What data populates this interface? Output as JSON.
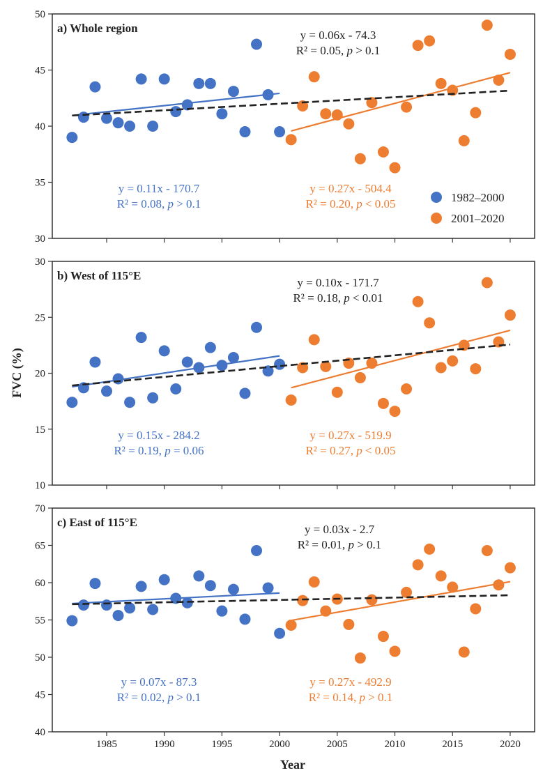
{
  "chart_data": {
    "type": "scatter",
    "xlabel": "Year",
    "ylabel": "FVC (%)",
    "xlim": [
      1981,
      2021.5
    ],
    "xticks": [
      1985,
      1990,
      1995,
      2000,
      2005,
      2010,
      2015,
      2020
    ],
    "legend": {
      "placement": "bottom-right of panel a",
      "entries": [
        "1982–2000",
        "2001–2020"
      ]
    },
    "colors": {
      "period1": "#4472C4",
      "period2": "#ED7D31",
      "overall_trend": "#222222"
    },
    "grid": false,
    "panels": [
      {
        "title": "a) Whole region",
        "ylim": [
          30,
          50
        ],
        "yticks": [
          30,
          35,
          40,
          45,
          50
        ],
        "series": [
          {
            "name": "1982–2000",
            "x": [
              1982,
              1983,
              1984,
              1985,
              1986,
              1987,
              1988,
              1989,
              1990,
              1991,
              1992,
              1993,
              1994,
              1995,
              1996,
              1997,
              1998,
              1999,
              2000
            ],
            "y": [
              39.0,
              40.8,
              43.5,
              40.7,
              40.3,
              40.0,
              44.2,
              40.0,
              44.2,
              41.3,
              41.9,
              43.8,
              43.8,
              41.1,
              43.1,
              39.5,
              47.3,
              42.8,
              39.5
            ]
          },
          {
            "name": "2001–2020",
            "x": [
              2001,
              2002,
              2003,
              2004,
              2005,
              2006,
              2007,
              2008,
              2009,
              2010,
              2011,
              2012,
              2013,
              2014,
              2015,
              2016,
              2017,
              2018,
              2019,
              2020
            ],
            "y": [
              38.8,
              41.8,
              44.4,
              41.1,
              41.0,
              40.2,
              37.1,
              42.1,
              37.7,
              36.3,
              41.7,
              47.2,
              47.6,
              43.8,
              43.2,
              38.7,
              41.2,
              49.0,
              44.1,
              46.4
            ]
          }
        ],
        "annotations": {
          "overall": [
            "y = 0.06x - 74.3",
            "R² = 0.05, ",
            "p",
            " > 0.1"
          ],
          "period1": [
            "y = 0.11x - 170.7",
            "R² = 0.08, ",
            "p",
            " > 0.1"
          ],
          "period2": [
            "y = 0.27x - 504.4",
            "R² = 0.20, ",
            "p",
            " < 0.05"
          ]
        }
      },
      {
        "title": "b) West of 115°E",
        "ylim": [
          10,
          30
        ],
        "yticks": [
          10,
          15,
          20,
          25,
          30
        ],
        "series": [
          {
            "name": "1982–2000",
            "x": [
              1982,
              1983,
              1984,
              1985,
              1986,
              1987,
              1988,
              1989,
              1990,
              1991,
              1992,
              1993,
              1994,
              1995,
              1996,
              1997,
              1998,
              1999,
              2000
            ],
            "y": [
              17.4,
              18.7,
              21.0,
              18.4,
              19.5,
              17.4,
              23.2,
              17.8,
              22.0,
              18.6,
              21.0,
              20.5,
              22.3,
              20.7,
              21.4,
              18.2,
              24.1,
              20.2,
              20.8
            ]
          },
          {
            "name": "2001–2020",
            "x": [
              2001,
              2002,
              2003,
              2004,
              2005,
              2006,
              2007,
              2008,
              2009,
              2010,
              2011,
              2012,
              2013,
              2014,
              2015,
              2016,
              2017,
              2018,
              2019,
              2020
            ],
            "y": [
              17.6,
              20.5,
              23.0,
              20.6,
              18.3,
              20.9,
              19.6,
              20.9,
              17.3,
              16.6,
              18.6,
              26.4,
              24.5,
              20.5,
              21.1,
              22.5,
              20.4,
              28.1,
              22.8,
              25.2
            ]
          }
        ],
        "annotations": {
          "overall": [
            "y = 0.10x - 171.7",
            "R² = 0.18, ",
            "p",
            " < 0.01"
          ],
          "period1": [
            "y = 0.15x - 284.2",
            "R² = 0.19, ",
            "p",
            " = 0.06"
          ],
          "period2": [
            "y = 0.27x - 519.9",
            "R² = 0.27, ",
            "p",
            " < 0.05"
          ]
        }
      },
      {
        "title": "c) East of 115°E",
        "ylim": [
          40,
          70
        ],
        "yticks": [
          40,
          45,
          50,
          55,
          60,
          65,
          70
        ],
        "series": [
          {
            "name": "1982–2000",
            "x": [
              1982,
              1983,
              1984,
              1985,
              1986,
              1987,
              1988,
              1989,
              1990,
              1991,
              1992,
              1993,
              1994,
              1995,
              1996,
              1997,
              1998,
              1999,
              2000
            ],
            "y": [
              54.9,
              57.0,
              59.9,
              57.0,
              55.6,
              56.6,
              59.5,
              56.4,
              60.4,
              57.9,
              57.3,
              60.9,
              59.6,
              56.2,
              59.1,
              55.1,
              64.3,
              59.3,
              53.2
            ]
          },
          {
            "name": "2001–2020",
            "x": [
              2001,
              2002,
              2003,
              2004,
              2005,
              2006,
              2007,
              2008,
              2009,
              2010,
              2011,
              2012,
              2013,
              2014,
              2015,
              2016,
              2017,
              2018,
              2019,
              2020
            ],
            "y": [
              54.3,
              57.6,
              60.1,
              56.2,
              57.8,
              54.4,
              49.9,
              57.7,
              52.8,
              50.8,
              58.7,
              62.4,
              64.5,
              60.9,
              59.4,
              50.7,
              56.5,
              64.3,
              59.7,
              62.0
            ]
          }
        ],
        "annotations": {
          "overall": [
            "y = 0.03x - 2.7",
            "R² = 0.01, ",
            "p",
            " > 0.1"
          ],
          "period1": [
            "y = 0.07x - 87.3",
            "R² = 0.02, ",
            "p",
            " > 0.1"
          ],
          "period2": [
            "y = 0.27x - 492.9",
            "R² = 0.14, ",
            "p",
            " > 0.1"
          ]
        }
      }
    ]
  }
}
